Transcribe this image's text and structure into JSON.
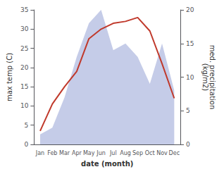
{
  "chart_data": {
    "type": "line",
    "categories": [
      "Jan",
      "Feb",
      "Mar",
      "Apr",
      "May",
      "Jun",
      "Jul",
      "Aug",
      "Sep",
      "Oct",
      "Nov",
      "Dec"
    ],
    "series": [
      {
        "type": "area",
        "axis": "y2",
        "color": "#c5cce8",
        "values": [
          1.5,
          2.5,
          7.0,
          13.0,
          18.0,
          20.0,
          14.0,
          15.0,
          13.0,
          9.0,
          15.0,
          8.0
        ]
      },
      {
        "type": "line",
        "color": "#c0392b",
        "values": [
          3.5,
          10.5,
          15.0,
          19.0,
          27.5,
          30.0,
          31.5,
          32.0,
          33.0,
          29.5,
          21.0,
          12.0
        ]
      }
    ],
    "xlabel": "date (month)",
    "ylabel": "max temp (C)",
    "y2label": "med. precipitation\n(kg/m2)",
    "ylim": [
      0,
      35
    ],
    "yticks": [
      0,
      5,
      10,
      15,
      20,
      25,
      30,
      35
    ],
    "y2lim": [
      0,
      20
    ],
    "y2ticks": [
      0,
      5,
      10,
      15,
      20
    ],
    "grid": false
  }
}
